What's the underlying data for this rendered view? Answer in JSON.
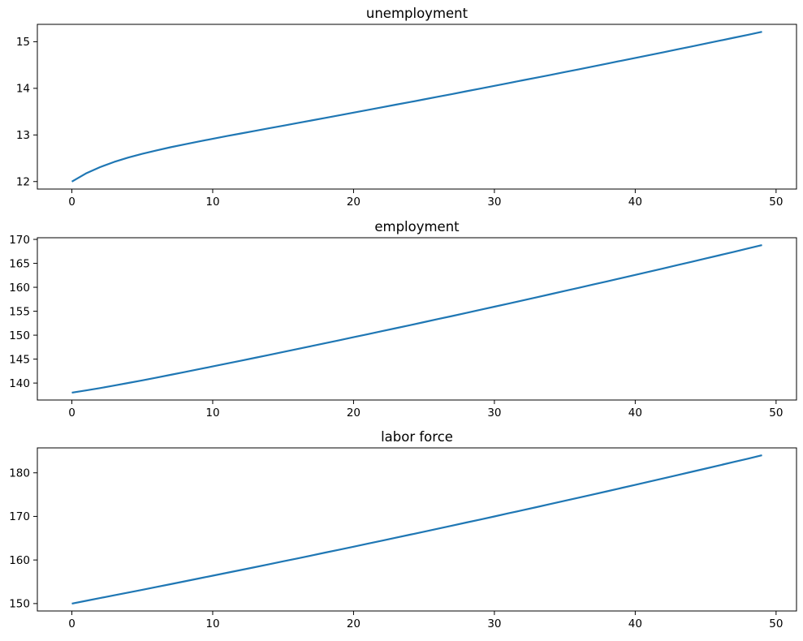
{
  "figure": {
    "background": "#ffffff",
    "text_color": "#000000",
    "axes_color": "#000000"
  },
  "chart_data": [
    {
      "type": "line",
      "title": "unemployment",
      "xlabel": "",
      "ylabel": "",
      "legend": null,
      "grid": false,
      "line_color": "#1f77b4",
      "xticks": [
        0,
        10,
        20,
        30,
        40,
        50
      ],
      "yticks": [
        12,
        13,
        14,
        15
      ],
      "xlim": [
        -2.45,
        51.45
      ],
      "ylim": [
        11.839,
        15.373
      ],
      "x": [
        0,
        1,
        2,
        3,
        4,
        5,
        6,
        7,
        8,
        9,
        10,
        11,
        12,
        13,
        14,
        15,
        16,
        17,
        18,
        19,
        20,
        21,
        22,
        23,
        24,
        25,
        26,
        27,
        28,
        29,
        30,
        31,
        32,
        33,
        34,
        35,
        36,
        37,
        38,
        39,
        40,
        41,
        42,
        43,
        44,
        45,
        46,
        47,
        48,
        49
      ],
      "y": [
        12.0,
        12.173,
        12.309,
        12.42,
        12.514,
        12.595,
        12.668,
        12.735,
        12.798,
        12.859,
        12.917,
        12.975,
        13.031,
        13.087,
        13.143,
        13.199,
        13.255,
        13.31,
        13.366,
        13.422,
        13.479,
        13.535,
        13.592,
        13.649,
        13.706,
        13.763,
        13.82,
        13.878,
        13.936,
        13.995,
        14.053,
        14.112,
        14.171,
        14.23,
        14.289,
        14.349,
        14.409,
        14.469,
        14.53,
        14.591,
        14.652,
        14.713,
        14.774,
        14.836,
        14.898,
        14.96,
        15.023,
        15.086,
        15.149,
        15.212
      ]
    },
    {
      "type": "line",
      "title": "employment",
      "xlabel": "",
      "ylabel": "",
      "legend": null,
      "grid": false,
      "line_color": "#1f77b4",
      "xticks": [
        0,
        10,
        20,
        30,
        40,
        50
      ],
      "yticks": [
        140,
        145,
        150,
        155,
        160,
        165,
        170
      ],
      "xlim": [
        -2.45,
        51.45
      ],
      "ylim": [
        136.46,
        170.346
      ],
      "x": [
        0,
        1,
        2,
        3,
        4,
        5,
        6,
        7,
        8,
        9,
        10,
        11,
        12,
        13,
        14,
        15,
        16,
        17,
        18,
        19,
        20,
        21,
        22,
        23,
        24,
        25,
        26,
        27,
        28,
        29,
        30,
        31,
        32,
        33,
        34,
        35,
        36,
        37,
        38,
        39,
        40,
        41,
        42,
        43,
        44,
        45,
        46,
        47,
        48,
        49
      ],
      "y": [
        138.0,
        138.454,
        138.948,
        139.469,
        140.01,
        140.566,
        141.134,
        141.709,
        142.292,
        142.88,
        143.472,
        144.068,
        144.668,
        145.271,
        145.877,
        146.486,
        147.098,
        147.713,
        148.33,
        148.95,
        149.572,
        150.197,
        150.825,
        151.456,
        152.089,
        152.724,
        153.363,
        154.004,
        154.648,
        155.294,
        155.943,
        156.595,
        157.25,
        157.907,
        158.567,
        159.23,
        159.895,
        160.564,
        161.235,
        161.909,
        162.586,
        163.266,
        163.948,
        164.633,
        165.322,
        166.013,
        166.707,
        167.404,
        168.104,
        168.806
      ]
    },
    {
      "type": "line",
      "title": "labor force",
      "xlabel": "",
      "ylabel": "",
      "legend": null,
      "grid": false,
      "line_color": "#1f77b4",
      "xticks": [
        0,
        10,
        20,
        30,
        40,
        50
      ],
      "yticks": [
        150,
        160,
        170,
        180
      ],
      "xlim": [
        -2.45,
        51.45
      ],
      "ylim": [
        148.299,
        185.72
      ],
      "x": [
        0,
        1,
        2,
        3,
        4,
        5,
        6,
        7,
        8,
        9,
        10,
        11,
        12,
        13,
        14,
        15,
        16,
        17,
        18,
        19,
        20,
        21,
        22,
        23,
        24,
        25,
        26,
        27,
        28,
        29,
        30,
        31,
        32,
        33,
        34,
        35,
        36,
        37,
        38,
        39,
        40,
        41,
        42,
        43,
        44,
        45,
        46,
        47,
        48,
        49
      ],
      "y": [
        150.0,
        150.627,
        151.257,
        151.889,
        152.524,
        153.161,
        153.802,
        154.444,
        155.09,
        155.738,
        156.389,
        157.043,
        157.699,
        158.359,
        159.021,
        159.685,
        160.353,
        161.023,
        161.696,
        162.372,
        163.051,
        163.732,
        164.417,
        165.104,
        165.794,
        166.487,
        167.183,
        167.882,
        168.584,
        169.289,
        169.996,
        170.707,
        171.421,
        172.137,
        172.857,
        173.579,
        174.305,
        175.033,
        175.765,
        176.5,
        177.238,
        177.979,
        178.722,
        179.47,
        180.22,
        180.973,
        181.73,
        182.49,
        183.253,
        184.019
      ]
    }
  ]
}
